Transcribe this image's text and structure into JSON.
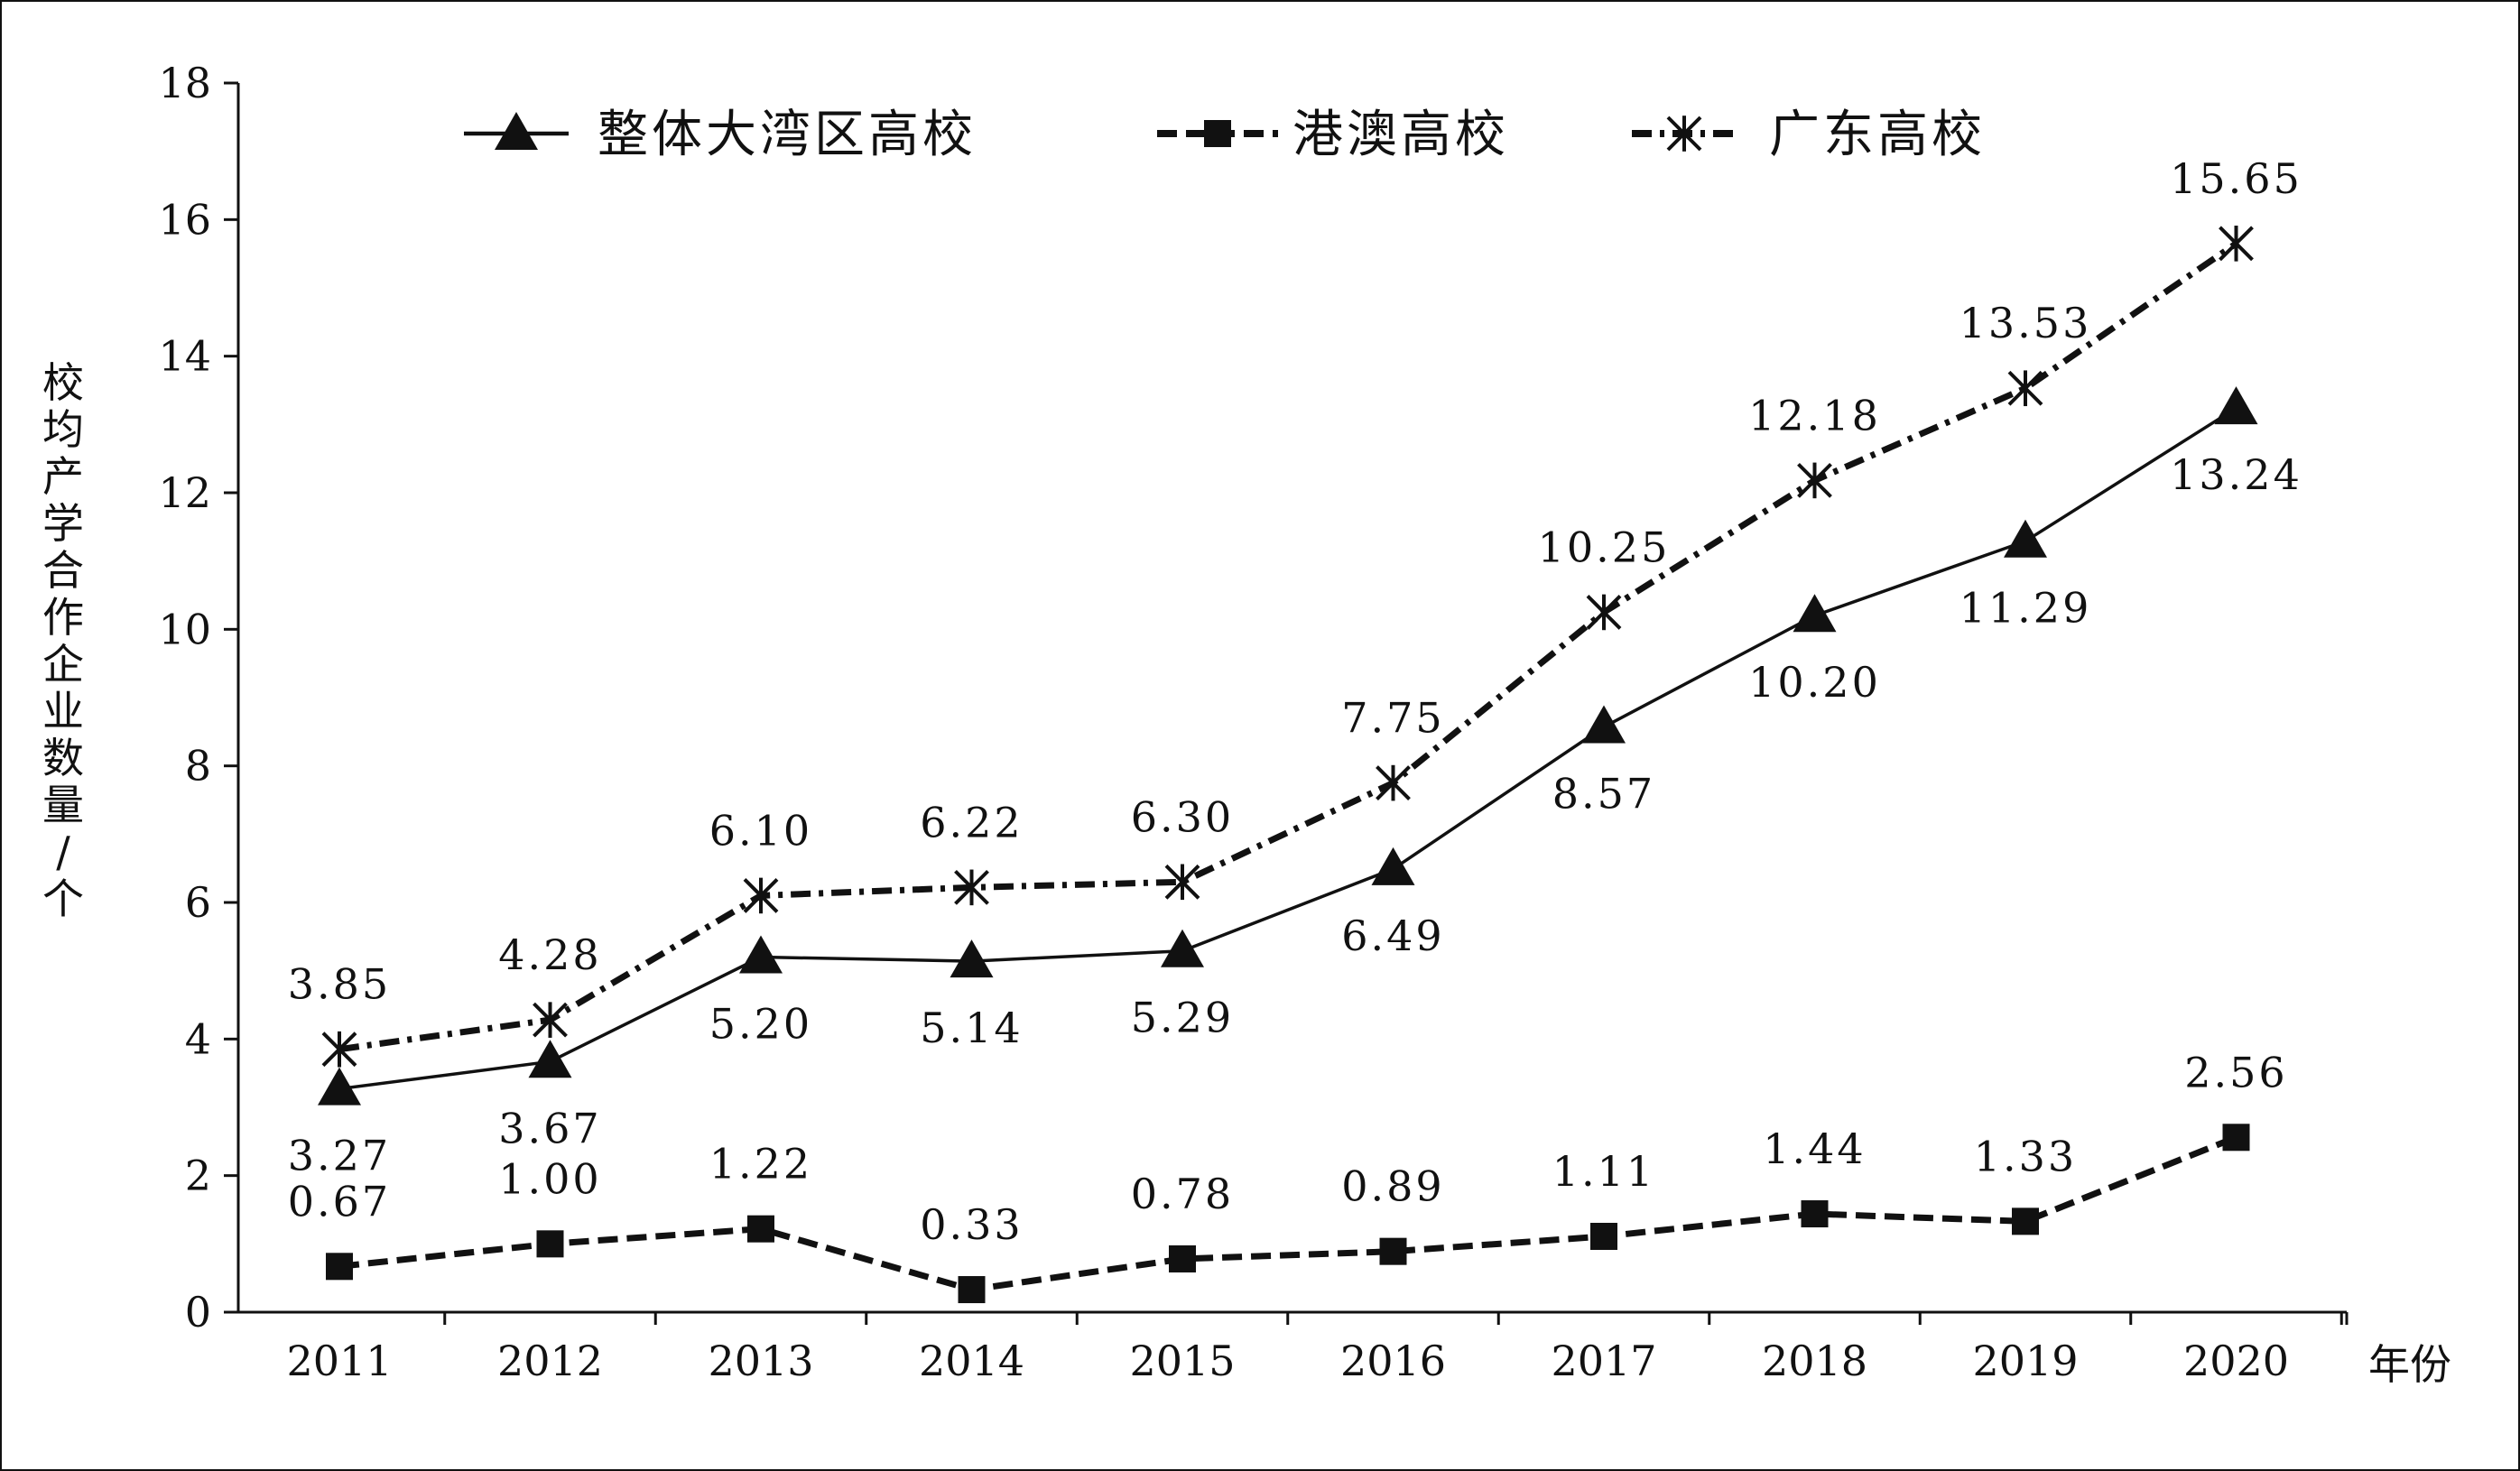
{
  "chart_data": {
    "type": "line",
    "title": "",
    "xlabel": "年份",
    "ylabel": "校均产学合作企业数量/个",
    "ylim": [
      0,
      18
    ],
    "yticks": [
      0,
      2,
      4,
      6,
      8,
      10,
      12,
      14,
      16,
      18
    ],
    "grid": false,
    "legend_position": "top",
    "categories": [
      "2011",
      "2012",
      "2013",
      "2014",
      "2015",
      "2016",
      "2017",
      "2018",
      "2019",
      "2020"
    ],
    "series": [
      {
        "name": "整体大湾区高校",
        "marker": "triangle",
        "line_style": "solid",
        "label_position": "below",
        "values": [
          3.27,
          3.67,
          5.2,
          5.14,
          5.29,
          6.49,
          8.57,
          10.2,
          11.29,
          13.24
        ],
        "labels": [
          "3.27",
          "3.67",
          "5.20",
          "5.14",
          "5.29",
          "6.49",
          "8.57",
          "10.20",
          "11.29",
          "13.24"
        ]
      },
      {
        "name": "港澳高校",
        "marker": "square",
        "line_style": "dashed",
        "label_position": "above",
        "values": [
          0.67,
          1.0,
          1.22,
          0.33,
          0.78,
          0.89,
          1.11,
          1.44,
          1.33,
          2.56
        ],
        "labels": [
          "0.67",
          "1.00",
          "1.22",
          "0.33",
          "0.78",
          "0.89",
          "1.11",
          "1.44",
          "1.33",
          "2.56"
        ]
      },
      {
        "name": "广东高校",
        "marker": "asterisk",
        "line_style": "dash-dot",
        "label_position": "above",
        "values": [
          3.85,
          4.28,
          6.1,
          6.22,
          6.3,
          7.75,
          10.25,
          12.18,
          13.53,
          15.65
        ],
        "labels": [
          "3.85",
          "4.28",
          "6.10",
          "6.22",
          "6.30",
          "7.75",
          "10.25",
          "12.18",
          "13.53",
          "15.65"
        ]
      }
    ],
    "colors": {
      "ink": "#111111",
      "background": "#ffffff"
    }
  }
}
